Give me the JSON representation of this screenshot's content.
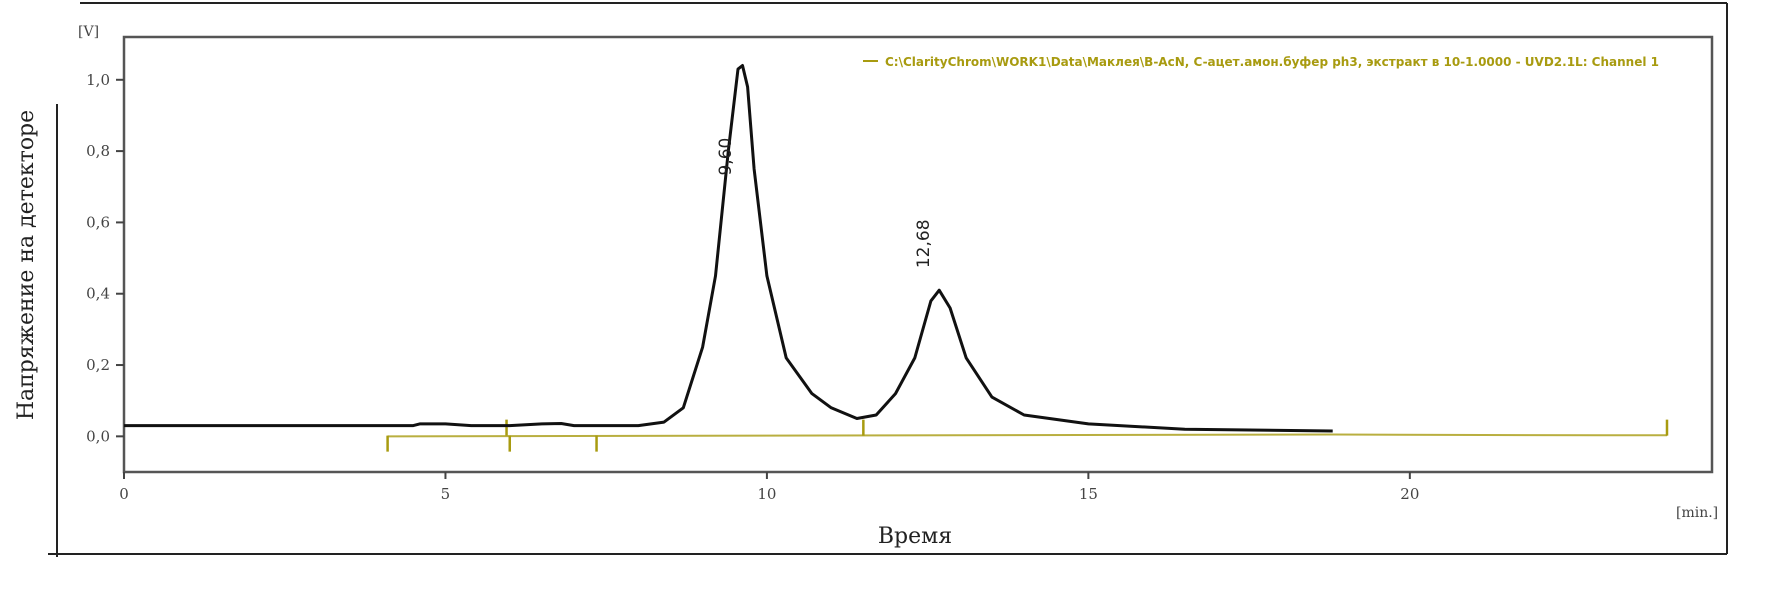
{
  "chart_data": {
    "type": "line",
    "xlabel": "Время",
    "ylabel": "Напряжение на детекторе",
    "x_unit": "[min.]",
    "y_unit": "[V]",
    "xlim": [
      0,
      24.7
    ],
    "ylim": [
      -0.1,
      1.12
    ],
    "x_ticks": [
      0,
      5,
      10,
      15,
      20
    ],
    "x_tick_labels": [
      "0",
      "5",
      "10",
      "15",
      "20"
    ],
    "y_ticks": [
      0,
      0.2,
      0.4,
      0.6,
      0.8,
      1.0
    ],
    "y_tick_labels": [
      "0,0",
      "0,2",
      "0,4",
      "0,6",
      "0,8",
      "1,0"
    ],
    "grid": false,
    "legend": {
      "position": "top-right",
      "entries": [
        "C:\\ClarityChrom\\WORK1\\Data\\Маклея\\B-AcN,  C-ацет.амон.буфер ph3, экстракт в 10-1.0000 - UVD2.1L: Channel 1"
      ]
    },
    "colors": {
      "signal": "#111111",
      "baseline": "#a89b10",
      "legend": "#a89b10"
    },
    "series": [
      {
        "x": [
          0,
          4.5,
          4.6,
          5.0,
          5.4,
          6.0,
          6.5,
          6.8,
          7.0,
          8.0,
          8.4,
          8.7,
          9.0,
          9.2,
          9.4,
          9.55,
          9.62,
          9.7,
          9.8,
          10.0,
          10.3,
          10.7,
          11.0,
          11.4,
          11.7,
          12.0,
          12.3,
          12.55,
          12.68,
          12.85,
          13.1,
          13.5,
          14.0,
          15.0,
          16.5,
          18.8
        ],
        "y": [
          0.03,
          0.03,
          0.035,
          0.035,
          0.03,
          0.03,
          0.035,
          0.036,
          0.03,
          0.03,
          0.04,
          0.08,
          0.25,
          0.45,
          0.8,
          1.03,
          1.04,
          0.98,
          0.75,
          0.45,
          0.22,
          0.12,
          0.08,
          0.05,
          0.06,
          0.12,
          0.22,
          0.38,
          0.41,
          0.36,
          0.22,
          0.11,
          0.06,
          0.035,
          0.02,
          0.015
        ]
      }
    ],
    "annotations": [
      {
        "text": "9,60",
        "x": 9.6,
        "y": 1.04
      },
      {
        "text": "12,68",
        "x": 12.68,
        "y": 0.41
      }
    ],
    "integration_baseline": {
      "x": [
        4.1,
        18.8,
        23.0,
        24.0
      ],
      "y": [
        0.0,
        0.005,
        0.003,
        0.003
      ],
      "markers": [
        {
          "x": 4.1,
          "dir": "down"
        },
        {
          "x": 5.95,
          "dir": "up"
        },
        {
          "x": 6.0,
          "dir": "down"
        },
        {
          "x": 7.35,
          "dir": "down"
        },
        {
          "x": 11.5,
          "dir": "up"
        },
        {
          "x": 24.0,
          "dir": "up"
        }
      ]
    }
  }
}
